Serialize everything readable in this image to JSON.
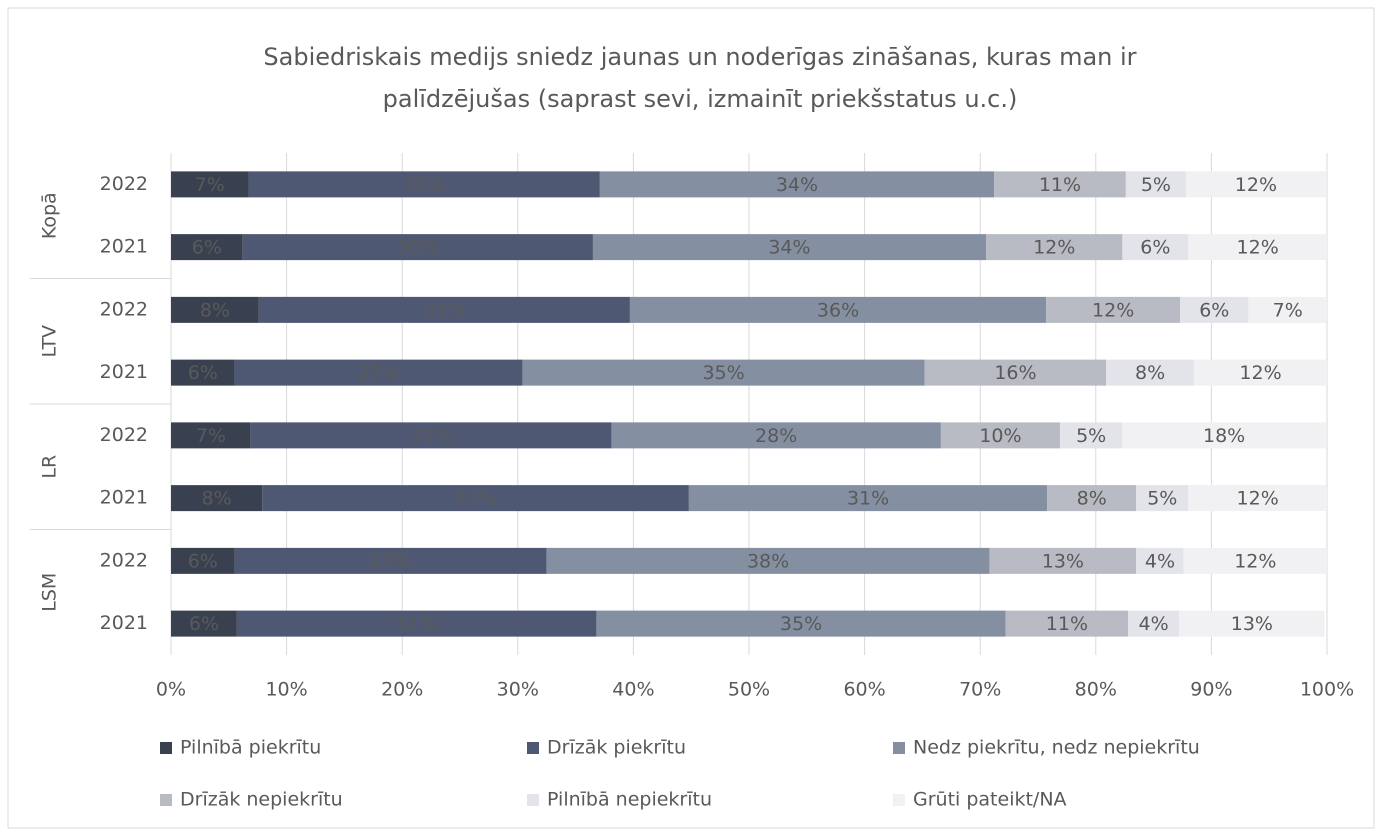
{
  "chart_data": {
    "type": "stacked-bar-horizontal",
    "title": [
      "Sabiedriskais medijs sniedz jaunas un noderīgas zināšanas, kuras man ir",
      "palīdzējušas (saprast sevi, izmainīt priekšstatus u.c.)"
    ],
    "groups": [
      "Kopā",
      "LTV",
      "LR",
      "LSM"
    ],
    "categories": [
      "2022",
      "2021",
      "2022",
      "2021",
      "2022",
      "2021",
      "2022",
      "2021"
    ],
    "series": [
      {
        "name": "Pilnībā piekrītu",
        "color": "#394150",
        "values": [
          6.7,
          6.2,
          7.6,
          5.5,
          6.9,
          7.9,
          5.5,
          5.7
        ],
        "value_labels": [
          "7%",
          "6%",
          "8%",
          "6%",
          "7%",
          "8%",
          "6%",
          "6%"
        ]
      },
      {
        "name": "Drīzāk piekrītu",
        "color": "#4f5872",
        "values": [
          30.4,
          30.3,
          32.1,
          24.9,
          31.2,
          36.9,
          27.0,
          31.1
        ],
        "value_labels": [
          "30%",
          "30%",
          "32%",
          "25%",
          "31%",
          "37%",
          "27%",
          "31%"
        ]
      },
      {
        "name": "Nedz piekrītu, nedz nepiekrītu",
        "color": "#848fa2",
        "values": [
          34.1,
          34.0,
          36.0,
          34.8,
          28.5,
          31.0,
          38.3,
          35.4
        ],
        "value_labels": [
          "34%",
          "34%",
          "36%",
          "35%",
          "28%",
          "31%",
          "38%",
          "35%"
        ]
      },
      {
        "name": "Drīzāk nepiekrītu",
        "color": "#b8bbc3",
        "values": [
          11.4,
          11.8,
          11.6,
          15.7,
          10.3,
          7.7,
          12.7,
          10.6
        ],
        "value_labels": [
          "11%",
          "12%",
          "12%",
          "16%",
          "10%",
          "8%",
          "13%",
          "11%"
        ]
      },
      {
        "name": "Pilnībā nepiekrītu",
        "color": "#e3e4ea",
        "values": [
          5.2,
          5.7,
          5.9,
          7.6,
          5.4,
          4.5,
          4.1,
          4.4
        ],
        "value_labels": [
          "5%",
          "6%",
          "6%",
          "8%",
          "5%",
          "5%",
          "4%",
          "4%"
        ]
      },
      {
        "name": "Grūti pateikt/NA",
        "color": "#f1f1f3",
        "values": [
          12.1,
          12.0,
          6.8,
          11.5,
          17.6,
          12.0,
          12.4,
          12.6
        ],
        "value_labels": [
          "12%",
          "12%",
          "7%",
          "12%",
          "18%",
          "12%",
          "12%",
          "13%"
        ]
      }
    ],
    "xlim": [
      0,
      100
    ],
    "xticks": [
      {
        "value": 0,
        "label": "0%"
      },
      {
        "value": 10,
        "label": "10%"
      },
      {
        "value": 20,
        "label": "20%"
      },
      {
        "value": 30,
        "label": "30%"
      },
      {
        "value": 40,
        "label": "40%"
      },
      {
        "value": 50,
        "label": "50%"
      },
      {
        "value": 60,
        "label": "60%"
      },
      {
        "value": 70,
        "label": "70%"
      },
      {
        "value": 80,
        "label": "80%"
      },
      {
        "value": 90,
        "label": "90%"
      },
      {
        "value": 100,
        "label": "100%"
      }
    ],
    "grid": true,
    "legend": "bottom"
  }
}
